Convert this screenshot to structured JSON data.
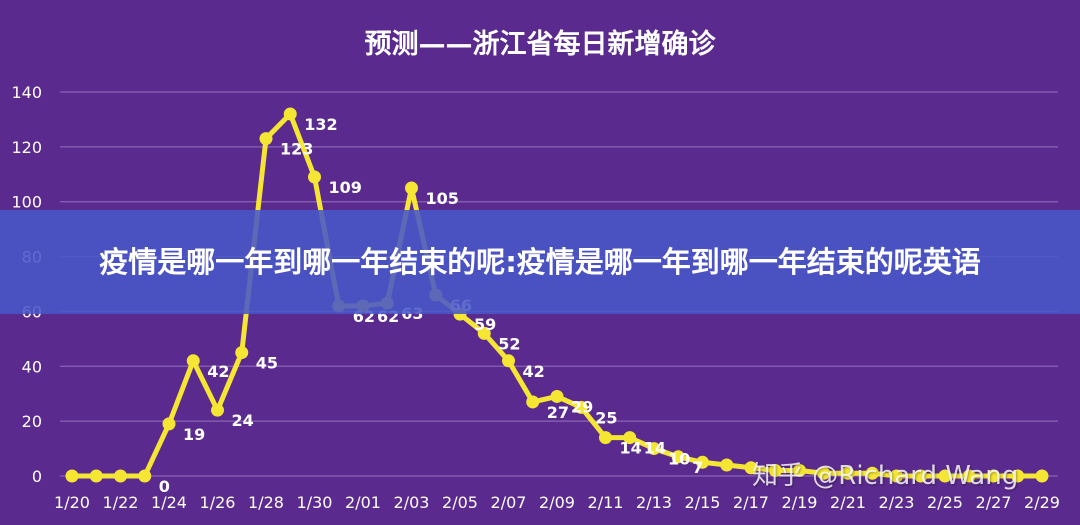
{
  "chart_data": {
    "type": "line",
    "title": "预测——浙江省每日新增确诊",
    "xlabel": "",
    "ylabel": "",
    "ylim": [
      0,
      140
    ],
    "yticks": [
      0,
      20,
      40,
      60,
      80,
      100,
      120,
      140
    ],
    "grid": true,
    "x": [
      "1/20",
      "1/21",
      "1/22",
      "1/23",
      "1/24",
      "1/25",
      "1/26",
      "1/27",
      "1/28",
      "1/29",
      "1/30",
      "1/31",
      "2/01",
      "2/02",
      "2/03",
      "2/04",
      "2/05",
      "2/06",
      "2/07",
      "2/08",
      "2/09",
      "2/10",
      "2/11",
      "2/12",
      "2/13",
      "2/14",
      "2/15",
      "2/16",
      "2/17",
      "2/18",
      "2/19",
      "2/20",
      "2/21",
      "2/22",
      "2/23",
      "2/24",
      "2/25",
      "2/26",
      "2/27",
      "2/28",
      "2/29"
    ],
    "x_tick_labels": [
      "1/20",
      "1/22",
      "1/24",
      "1/26",
      "1/28",
      "1/30",
      "2/01",
      "2/03",
      "2/05",
      "2/07",
      "2/09",
      "2/11",
      "2/13",
      "2/15",
      "2/17",
      "2/19",
      "2/21",
      "2/23",
      "2/25",
      "2/27",
      "2/29"
    ],
    "series": [
      {
        "values": [
          0,
          0,
          0,
          0,
          19,
          42,
          24,
          45,
          123,
          132,
          109,
          62,
          62,
          63,
          105,
          66,
          59,
          52,
          42,
          27,
          29,
          25,
          14,
          14,
          10,
          7,
          5,
          4,
          3,
          2,
          2,
          1,
          1,
          1,
          0,
          0,
          0,
          0,
          0,
          0,
          0
        ],
        "data_labels": [
          "",
          "",
          "",
          "0",
          "19",
          "42",
          "24",
          "45",
          "123",
          "132",
          "109",
          "62",
          "62",
          "63",
          "105",
          "66",
          "59",
          "52",
          "42",
          "27",
          "29",
          "25",
          "14",
          "14",
          "10",
          "7",
          "",
          "",
          "",
          "",
          "",
          "",
          "",
          "",
          "",
          "",
          "",
          "",
          "",
          "",
          ""
        ]
      }
    ],
    "colors": {
      "line": "#f5e633",
      "grid": "#8a64b3",
      "axis_text": "#ffffff",
      "background": "#5b2a8e"
    }
  },
  "banner": {
    "text": "疫情是哪一年到哪一年结束的呢:疫情是哪一年到哪一年结束的呢英语"
  },
  "watermark": {
    "text": "知乎 @Richard Wang"
  }
}
